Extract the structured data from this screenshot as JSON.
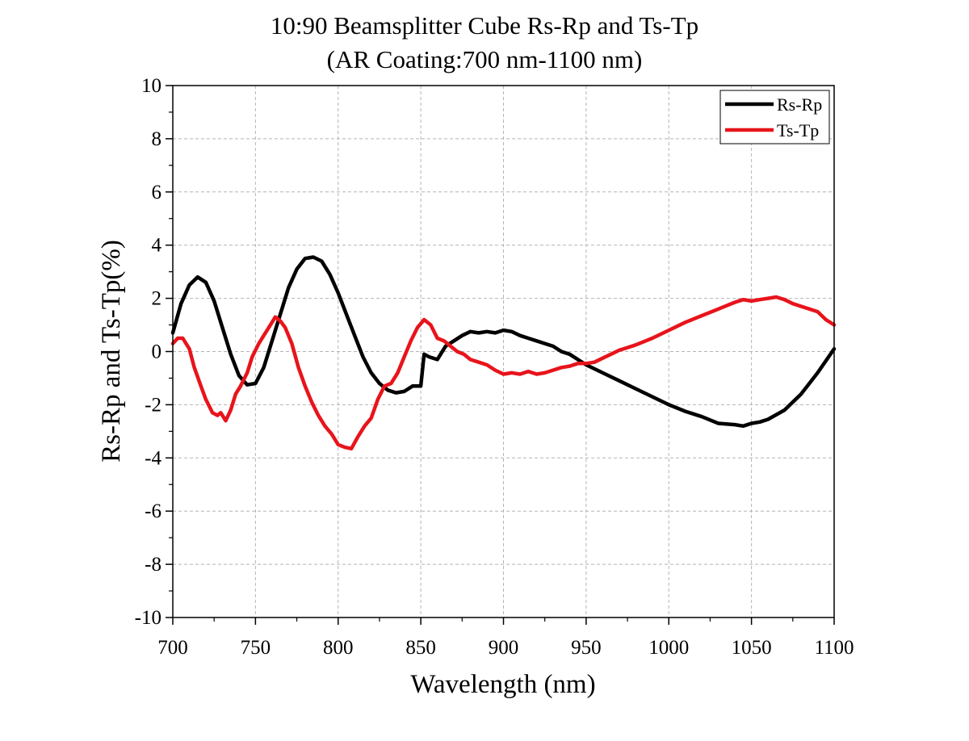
{
  "chart_data": {
    "type": "line",
    "title": "10:90 Beamsplitter Cube Rs-Rp and Ts-Tp",
    "subtitle": "(AR Coating:700 nm-1100 nm)",
    "xlabel": "Wavelength (nm)",
    "ylabel": "Rs-Rp and Ts-Tp(%)",
    "xlim": [
      700,
      1100
    ],
    "ylim": [
      -10,
      10
    ],
    "x_ticks": [
      "700",
      "750",
      "800",
      "850",
      "900",
      "950",
      "1000",
      "1050",
      "1100"
    ],
    "y_ticks": [
      "-10",
      "-8",
      "-6",
      "-4",
      "-2",
      "0",
      "2",
      "4",
      "6",
      "8",
      "10"
    ],
    "grid": true,
    "legend_position": "top-right",
    "colors": {
      "Rs-Rp": "#000000",
      "Ts-Tp": "#e8141b"
    },
    "series": [
      {
        "name": "Rs-Rp",
        "points": [
          [
            700,
            0.7
          ],
          [
            705,
            1.8
          ],
          [
            710,
            2.5
          ],
          [
            715,
            2.8
          ],
          [
            720,
            2.6
          ],
          [
            725,
            1.9
          ],
          [
            730,
            0.9
          ],
          [
            735,
            -0.1
          ],
          [
            740,
            -0.9
          ],
          [
            745,
            -1.25
          ],
          [
            750,
            -1.2
          ],
          [
            755,
            -0.6
          ],
          [
            760,
            0.4
          ],
          [
            765,
            1.4
          ],
          [
            770,
            2.4
          ],
          [
            775,
            3.1
          ],
          [
            780,
            3.5
          ],
          [
            785,
            3.55
          ],
          [
            790,
            3.4
          ],
          [
            795,
            2.9
          ],
          [
            800,
            2.2
          ],
          [
            805,
            1.4
          ],
          [
            810,
            0.6
          ],
          [
            815,
            -0.2
          ],
          [
            820,
            -0.8
          ],
          [
            825,
            -1.2
          ],
          [
            830,
            -1.45
          ],
          [
            835,
            -1.55
          ],
          [
            840,
            -1.5
          ],
          [
            845,
            -1.3
          ],
          [
            850,
            -1.3
          ],
          [
            852,
            -0.1
          ],
          [
            855,
            -0.2
          ],
          [
            860,
            -0.3
          ],
          [
            865,
            0.2
          ],
          [
            870,
            0.4
          ],
          [
            875,
            0.6
          ],
          [
            880,
            0.75
          ],
          [
            885,
            0.7
          ],
          [
            890,
            0.75
          ],
          [
            895,
            0.7
          ],
          [
            900,
            0.8
          ],
          [
            905,
            0.75
          ],
          [
            910,
            0.6
          ],
          [
            915,
            0.5
          ],
          [
            920,
            0.4
          ],
          [
            925,
            0.3
          ],
          [
            930,
            0.2
          ],
          [
            935,
            0.0
          ],
          [
            940,
            -0.1
          ],
          [
            945,
            -0.3
          ],
          [
            950,
            -0.5
          ],
          [
            960,
            -0.8
          ],
          [
            970,
            -1.1
          ],
          [
            980,
            -1.4
          ],
          [
            990,
            -1.7
          ],
          [
            1000,
            -2.0
          ],
          [
            1010,
            -2.25
          ],
          [
            1020,
            -2.45
          ],
          [
            1030,
            -2.7
          ],
          [
            1040,
            -2.75
          ],
          [
            1045,
            -2.8
          ],
          [
            1050,
            -2.7
          ],
          [
            1055,
            -2.65
          ],
          [
            1060,
            -2.55
          ],
          [
            1070,
            -2.2
          ],
          [
            1080,
            -1.6
          ],
          [
            1090,
            -0.8
          ],
          [
            1100,
            0.1
          ]
        ]
      },
      {
        "name": "Ts-Tp",
        "points": [
          [
            700,
            0.3
          ],
          [
            703,
            0.5
          ],
          [
            706,
            0.5
          ],
          [
            710,
            0.1
          ],
          [
            713,
            -0.6
          ],
          [
            717,
            -1.3
          ],
          [
            720,
            -1.8
          ],
          [
            724,
            -2.3
          ],
          [
            727,
            -2.4
          ],
          [
            729,
            -2.3
          ],
          [
            732,
            -2.6
          ],
          [
            735,
            -2.2
          ],
          [
            738,
            -1.6
          ],
          [
            741,
            -1.3
          ],
          [
            745,
            -0.8
          ],
          [
            748,
            -0.2
          ],
          [
            752,
            0.3
          ],
          [
            756,
            0.7
          ],
          [
            760,
            1.1
          ],
          [
            762,
            1.3
          ],
          [
            765,
            1.15
          ],
          [
            768,
            0.9
          ],
          [
            772,
            0.3
          ],
          [
            776,
            -0.6
          ],
          [
            780,
            -1.3
          ],
          [
            784,
            -1.9
          ],
          [
            788,
            -2.4
          ],
          [
            792,
            -2.8
          ],
          [
            796,
            -3.1
          ],
          [
            800,
            -3.5
          ],
          [
            804,
            -3.6
          ],
          [
            808,
            -3.65
          ],
          [
            812,
            -3.2
          ],
          [
            816,
            -2.8
          ],
          [
            820,
            -2.5
          ],
          [
            824,
            -1.8
          ],
          [
            828,
            -1.3
          ],
          [
            832,
            -1.2
          ],
          [
            836,
            -0.8
          ],
          [
            840,
            -0.2
          ],
          [
            844,
            0.4
          ],
          [
            848,
            0.9
          ],
          [
            852,
            1.2
          ],
          [
            856,
            1.0
          ],
          [
            860,
            0.5
          ],
          [
            864,
            0.4
          ],
          [
            868,
            0.2
          ],
          [
            872,
            0.0
          ],
          [
            876,
            -0.1
          ],
          [
            880,
            -0.3
          ],
          [
            885,
            -0.4
          ],
          [
            890,
            -0.5
          ],
          [
            895,
            -0.7
          ],
          [
            900,
            -0.85
          ],
          [
            905,
            -0.8
          ],
          [
            910,
            -0.85
          ],
          [
            915,
            -0.75
          ],
          [
            920,
            -0.85
          ],
          [
            925,
            -0.8
          ],
          [
            930,
            -0.7
          ],
          [
            935,
            -0.6
          ],
          [
            940,
            -0.55
          ],
          [
            945,
            -0.45
          ],
          [
            950,
            -0.45
          ],
          [
            955,
            -0.4
          ],
          [
            960,
            -0.25
          ],
          [
            965,
            -0.1
          ],
          [
            970,
            0.05
          ],
          [
            975,
            0.15
          ],
          [
            980,
            0.25
          ],
          [
            990,
            0.5
          ],
          [
            1000,
            0.8
          ],
          [
            1010,
            1.1
          ],
          [
            1020,
            1.35
          ],
          [
            1030,
            1.6
          ],
          [
            1040,
            1.85
          ],
          [
            1045,
            1.95
          ],
          [
            1050,
            1.9
          ],
          [
            1055,
            1.95
          ],
          [
            1060,
            2.0
          ],
          [
            1065,
            2.05
          ],
          [
            1070,
            1.95
          ],
          [
            1075,
            1.8
          ],
          [
            1080,
            1.7
          ],
          [
            1085,
            1.6
          ],
          [
            1090,
            1.5
          ],
          [
            1095,
            1.2
          ],
          [
            1100,
            1.0
          ]
        ]
      }
    ]
  }
}
